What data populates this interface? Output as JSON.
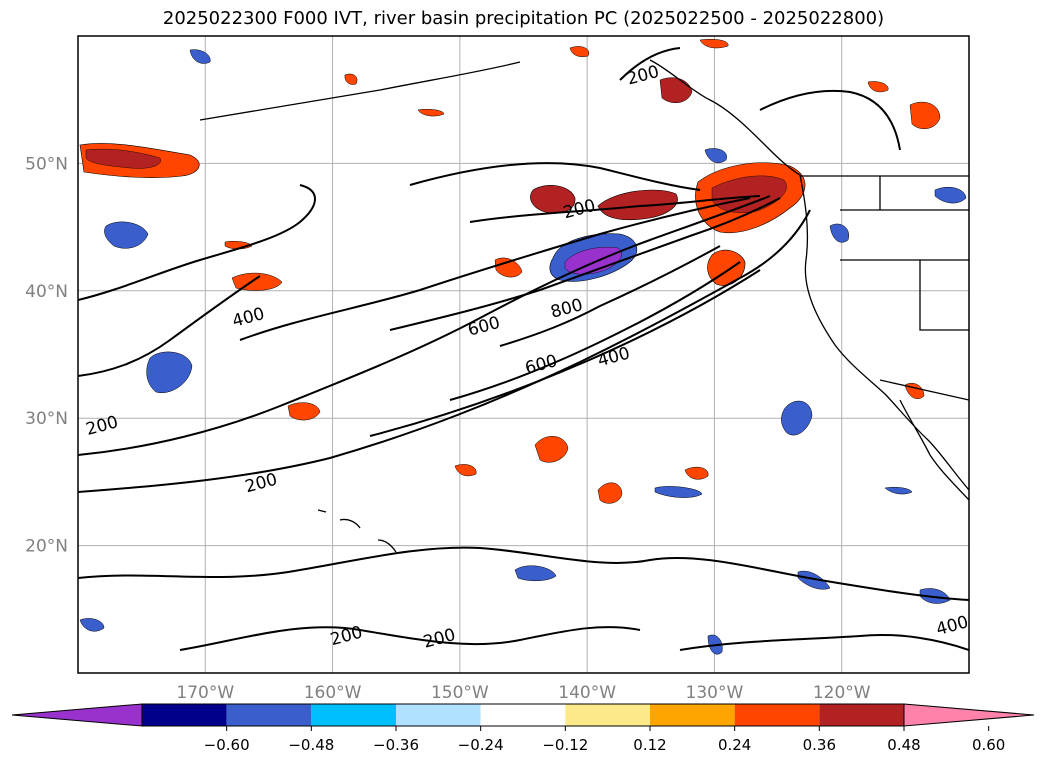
{
  "title": "2025022300 F000 IVT, river basin precipitation PC (2025022500 - 2025022800)",
  "map": {
    "lon_range": [
      -180,
      -110
    ],
    "lat_range": [
      10,
      60
    ],
    "lat_labels": [
      {
        "lat": 50,
        "text": "50°N"
      },
      {
        "lat": 40,
        "text": "40°N"
      },
      {
        "lat": 30,
        "text": "30°N"
      },
      {
        "lat": 20,
        "text": "20°N"
      }
    ],
    "lon_labels": [
      {
        "lon": -170,
        "text": "170°W"
      },
      {
        "lon": -160,
        "text": "160°W"
      },
      {
        "lon": -150,
        "text": "150°W"
      },
      {
        "lon": -140,
        "text": "140°W"
      },
      {
        "lon": -130,
        "text": "130°W"
      },
      {
        "lon": -120,
        "text": "120°W"
      }
    ],
    "gridline_color": "#b0b0b0",
    "tick_label_color": "#808080",
    "contour_labels": [
      {
        "text": "200",
        "lon": -178,
        "lat": 29
      },
      {
        "text": "200",
        "lon": -165.5,
        "lat": 24.5
      },
      {
        "text": "400",
        "lon": -166.5,
        "lat": 37.5
      },
      {
        "text": "600",
        "lon": -148,
        "lat": 36.8
      },
      {
        "text": "800",
        "lon": -141.5,
        "lat": 38.2
      },
      {
        "text": "600",
        "lon": -143.5,
        "lat": 33.8
      },
      {
        "text": "400",
        "lon": -137.8,
        "lat": 34.4
      },
      {
        "text": "200",
        "lon": -140.5,
        "lat": 46.0
      },
      {
        "text": "200",
        "lon": -158.8,
        "lat": 12.5
      },
      {
        "text": "200",
        "lon": -151.5,
        "lat": 12.3
      },
      {
        "text": "200",
        "lon": -135.5,
        "lat": 56.5
      },
      {
        "text": "400",
        "lon": -111.2,
        "lat": 13.3
      }
    ]
  },
  "colorbar": {
    "colors": [
      "#9932cc",
      "#00008b",
      "#3a5fcd",
      "#00bfff",
      "#b0e2ff",
      "#ffffff",
      "#fce98a",
      "#ffa500",
      "#ff4500",
      "#b22222",
      "#ff82ab"
    ],
    "tick_labels": [
      "−0.60",
      "−0.48",
      "−0.36",
      "−0.24",
      "−0.12",
      "0.12",
      "0.24",
      "0.36",
      "0.48",
      "0.60"
    ]
  }
}
